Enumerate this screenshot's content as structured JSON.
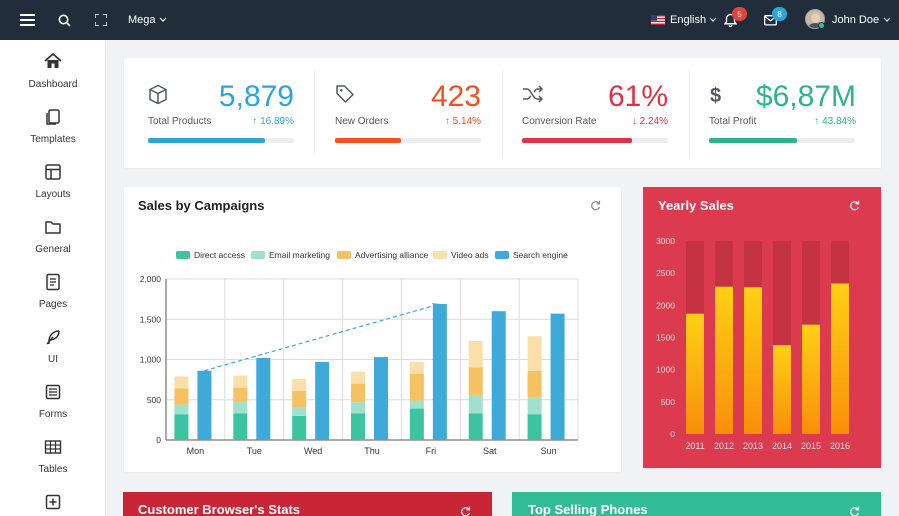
{
  "topbar": {
    "mega_label": "Mega",
    "language_label": "English",
    "notifications_count": "5",
    "messages_count": "8",
    "user_name": "John Doe"
  },
  "sidebar": {
    "items": [
      {
        "label": "Dashboard",
        "icon": "home-icon"
      },
      {
        "label": "Templates",
        "icon": "copy-icon"
      },
      {
        "label": "Layouts",
        "icon": "layout-icon"
      },
      {
        "label": "General",
        "icon": "folder-icon"
      },
      {
        "label": "Pages",
        "icon": "file-text-icon"
      },
      {
        "label": "UI",
        "icon": "feather-icon"
      },
      {
        "label": "Forms",
        "icon": "form-icon"
      },
      {
        "label": "Tables",
        "icon": "grid-icon"
      },
      {
        "label": "",
        "icon": "plus-square-icon"
      }
    ]
  },
  "stats": [
    {
      "value": "5,879",
      "label": "Total Products",
      "change": "16.89%",
      "direction": "up",
      "color": "#2aa6dc",
      "progress": 0.8,
      "icon": "box-icon"
    },
    {
      "value": "423",
      "label": "New Orders",
      "change": "5.14%",
      "direction": "up",
      "color": "#f4511e",
      "progress": 0.45,
      "icon": "tag-icon"
    },
    {
      "value": "61%",
      "label": "Conversion Rate",
      "change": "2.24%",
      "direction": "down",
      "color": "#db3545",
      "progress": 0.75,
      "icon": "shuffle-icon"
    },
    {
      "value": "$6,87M",
      "label": "Total Profit",
      "change": "43.84%",
      "direction": "up",
      "color": "#2cb58a",
      "progress": 0.6,
      "icon": "dollar-icon"
    }
  ],
  "campaigns": {
    "title": "Sales by Campaigns"
  },
  "yearly": {
    "title": "Yearly Sales"
  },
  "browser_stats": {
    "title": "Customer Browser's Stats"
  },
  "top_phones": {
    "title": "Top Selling Phones"
  },
  "colors": {
    "direct": "#3cc3a0",
    "email": "#9fe0cf",
    "advertising": "#f6c160",
    "video": "#fadfa9",
    "search": "#3eaad9",
    "yearly_bg": "#dc3a4e",
    "browser_bg": "#c82636",
    "phones_bg": "#31bc95"
  },
  "chart_data": [
    {
      "type": "bar",
      "stacked": true,
      "title": "Sales by Campaigns",
      "categories": [
        "Mon",
        "Tue",
        "Wed",
        "Thu",
        "Fri",
        "Sat",
        "Sun"
      ],
      "ylim": [
        0,
        2000
      ],
      "yticks": [
        "0",
        "500",
        "1,000",
        "1,500",
        "2,000"
      ],
      "legend_position": "top",
      "grid": true,
      "series": [
        {
          "name": "Direct access",
          "values": [
            320,
            330,
            300,
            330,
            390,
            330,
            320
          ],
          "stack": "a"
        },
        {
          "name": "Email marketing",
          "values": [
            120,
            140,
            110,
            140,
            100,
            230,
            210
          ],
          "stack": "a"
        },
        {
          "name": "Advertising alliance",
          "values": [
            200,
            180,
            200,
            230,
            330,
            340,
            330
          ],
          "stack": "a"
        },
        {
          "name": "Video ads",
          "values": [
            150,
            150,
            150,
            150,
            150,
            330,
            430
          ],
          "stack": "a"
        },
        {
          "name": "Search engine",
          "values": [
            860,
            1020,
            970,
            1030,
            1690,
            1600,
            1570
          ],
          "stack": "b"
        }
      ],
      "trend_line": {
        "from": "Mon",
        "to": "Fri",
        "values": [
          860,
          1690
        ]
      }
    },
    {
      "type": "bar",
      "title": "Yearly Sales",
      "categories": [
        "2011",
        "2012",
        "2013",
        "2014",
        "2015",
        "2016"
      ],
      "ylim": [
        0,
        3000
      ],
      "yticks": [
        "0",
        "500",
        "1000",
        "1500",
        "2000",
        "2500",
        "3000"
      ],
      "grid": false,
      "series": [
        {
          "values": [
            1870,
            2290,
            2280,
            1380,
            1700,
            2340
          ]
        }
      ]
    }
  ]
}
